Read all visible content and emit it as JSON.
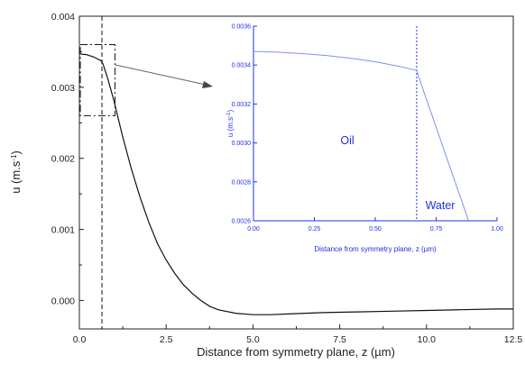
{
  "chart_data": [
    {
      "type": "line",
      "xlabel": "Distance from symmetry plane, z (µm)",
      "ylabel_base": "u (m.s",
      "ylabel_sup": "-1",
      "ylabel_end": ")",
      "xlim": [
        0,
        12.5
      ],
      "ylim": [
        -0.0004,
        0.004
      ],
      "x_ticks": [
        "0.0",
        "2.5",
        "5.0",
        "7.5",
        "10.0",
        "12.5"
      ],
      "y_ticks": [
        "0.000",
        "0.001",
        "0.002",
        "0.003",
        "0.004"
      ],
      "line_color": "#111111",
      "interface_line_x": 0.65,
      "zoom_box": {
        "x": [
          0,
          1.0
        ],
        "y": [
          0.0026,
          0.0036
        ]
      },
      "series": [
        {
          "x": [
            0,
            0.2,
            0.4,
            0.6,
            0.65,
            0.7,
            0.8,
            0.9,
            1.0,
            1.1,
            1.25,
            1.5,
            1.75,
            2.0,
            2.25,
            2.5,
            2.75,
            3.0,
            3.25,
            3.5,
            3.75,
            4.0,
            4.5,
            5.0,
            5.5,
            6.0,
            6.5,
            7.0,
            8.0,
            9.0,
            10.0,
            11.0,
            12.0,
            12.5
          ],
          "y": [
            0.00347,
            0.00346,
            0.00343,
            0.00338,
            0.00336,
            0.0033,
            0.00315,
            0.00298,
            0.0028,
            0.0026,
            0.0023,
            0.00185,
            0.00145,
            0.0011,
            0.0008,
            0.00057,
            0.00038,
            0.00022,
            0.0001,
            0.0,
            -8e-05,
            -0.00013,
            -0.00018,
            -0.0002,
            -0.0002,
            -0.00019,
            -0.00018,
            -0.00017,
            -0.00016,
            -0.00015,
            -0.00014,
            -0.00013,
            -0.00012,
            -0.00012
          ]
        }
      ]
    },
    {
      "type": "line",
      "xlabel": "Distance from symmetry plane, z (µm)",
      "ylabel_base": "u (m.s",
      "ylabel_sup": "-1",
      "ylabel_end": ")",
      "xlim": [
        0,
        1.0
      ],
      "ylim": [
        0.0026,
        0.0036
      ],
      "x_ticks": [
        "0.00",
        "0.25",
        "0.50",
        "0.75",
        "1.00"
      ],
      "y_ticks": [
        "0.0026",
        "0.0028",
        "0.0030",
        "0.0032",
        "0.0034",
        "0.0036"
      ],
      "line_color": "#8090f0",
      "axis_color": "#2030e0",
      "interface_line_x": 0.67,
      "regions": {
        "left": "Oil",
        "right": "Water"
      },
      "series": [
        {
          "x": [
            0,
            0.1,
            0.2,
            0.3,
            0.4,
            0.5,
            0.6,
            0.67,
            0.7,
            0.75,
            0.8,
            0.85,
            0.9
          ],
          "y": [
            0.00347,
            0.003466,
            0.003459,
            0.003449,
            0.003435,
            0.003417,
            0.003393,
            0.003372,
            0.00326,
            0.00308,
            0.0029,
            0.00272,
            0.00254
          ]
        }
      ]
    }
  ]
}
